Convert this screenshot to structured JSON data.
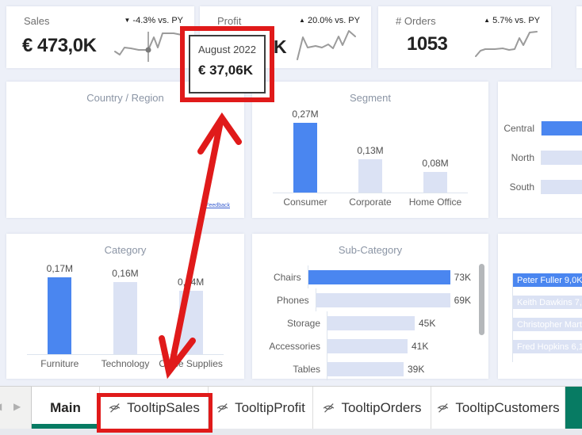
{
  "colors": {
    "accent_blue": "#4a86f0",
    "bar_light": "#dbe2f4",
    "annotation_red": "#e01a1a",
    "teal": "#077b63",
    "spark_gray": "#9b9b9b"
  },
  "kpi": {
    "sales": {
      "label": "Sales",
      "value": "€ 473,0K",
      "trend_arrow": "▼",
      "trend_text": "-4.3% vs. PY"
    },
    "profit": {
      "label": "Profit",
      "value_visible": "K",
      "trend_arrow": "▲",
      "trend_text": "20.0% vs. PY"
    },
    "orders": {
      "label": "# Orders",
      "value": "1053",
      "trend_arrow": "▲",
      "trend_text": "5.7% vs. PY"
    }
  },
  "tooltip": {
    "period": "August 2022",
    "value": "€ 37,06K"
  },
  "map_card": {
    "title": "Country / Region",
    "feedback_link": "Feedback"
  },
  "chart_data": [
    {
      "id": "segment",
      "type": "bar",
      "orientation": "vertical",
      "title": "Segment",
      "categories": [
        "Consumer",
        "Corporate",
        "Home Office"
      ],
      "values": [
        0.27,
        0.13,
        0.08
      ],
      "value_labels": [
        "0,27M",
        "0,13M",
        "0,08M"
      ],
      "highlight_index": 0,
      "unit": "M"
    },
    {
      "id": "category",
      "type": "bar",
      "orientation": "vertical",
      "title": "Category",
      "categories": [
        "Furniture",
        "Technology",
        "Office Supplies"
      ],
      "values": [
        0.17,
        0.16,
        0.14
      ],
      "value_labels": [
        "0,17M",
        "0,16M",
        "0,14M"
      ],
      "highlight_index": 0,
      "unit": "M"
    },
    {
      "id": "subcategory",
      "type": "bar",
      "orientation": "horizontal",
      "title": "Sub-Category",
      "categories": [
        "Chairs",
        "Phones",
        "Storage",
        "Accessories",
        "Tables"
      ],
      "values": [
        73,
        69,
        45,
        41,
        39
      ],
      "value_labels": [
        "73K",
        "69K",
        "45K",
        "41K",
        "39K"
      ],
      "highlight_index": 0,
      "unit": "K",
      "has_scrollbar": true
    },
    {
      "id": "regions",
      "type": "bar",
      "orientation": "horizontal",
      "title": "",
      "categories": [
        "Central",
        "North",
        "South"
      ],
      "values": [
        null,
        null,
        null
      ],
      "value_labels": [
        "",
        "",
        ""
      ],
      "highlight_index": 0,
      "bars_clipped_at_right_edge": true
    },
    {
      "id": "customers",
      "type": "bar",
      "orientation": "horizontal",
      "title": "",
      "categories": [],
      "bar_inner_labels": [
        "Peter Fuller 9,0K",
        "Keith Dawkins 7,0K",
        "Christopher Martinez 6",
        "Fred Hopkins 6,1K"
      ],
      "highlight_index": 0,
      "bars_clipped_at_right_edge": true
    }
  ],
  "tabs": {
    "items": [
      {
        "label": "Main",
        "active": true,
        "hidden_icon": false,
        "annotated": false
      },
      {
        "label": "TooltipSales",
        "active": false,
        "hidden_icon": true,
        "annotated": true
      },
      {
        "label": "TooltipProfit",
        "active": false,
        "hidden_icon": true,
        "annotated": false
      },
      {
        "label": "TooltipOrders",
        "active": false,
        "hidden_icon": true,
        "annotated": false
      },
      {
        "label": "TooltipCustomers",
        "active": false,
        "hidden_icon": true,
        "annotated": false
      }
    ]
  }
}
